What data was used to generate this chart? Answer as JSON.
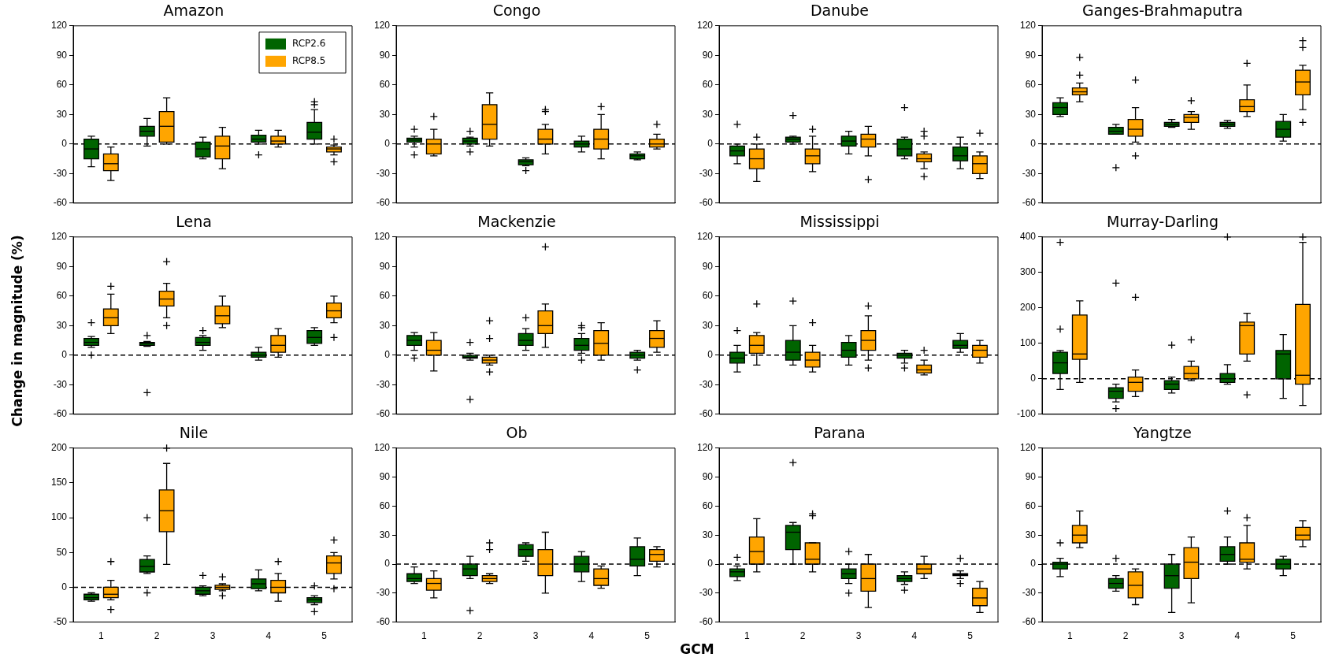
{
  "chart_data": [
    {
      "type": "box",
      "title": "Amazon",
      "categories": [
        "1",
        "2",
        "3",
        "4",
        "5"
      ],
      "ylim": [
        -60,
        120
      ],
      "yticks": [
        -60,
        -30,
        0,
        30,
        60,
        90,
        120
      ],
      "tick_labels": "y",
      "legend": "top right",
      "marker": "cross",
      "ref_lines": [
        {
          "axis": "y",
          "value": 0,
          "line_style": "dashed"
        }
      ],
      "series": [
        {
          "name": "RCP2.6",
          "color": "#006400",
          "boxes": [
            {
              "low": -23,
              "q1": -15,
              "median": -5,
              "q3": 5,
              "high": 8
            },
            {
              "low": -2,
              "q1": 8,
              "median": 13,
              "q3": 18,
              "high": 26
            },
            {
              "low": -15,
              "q1": -13,
              "median": -5,
              "q3": 2,
              "high": 7
            },
            {
              "low": 0,
              "q1": 2,
              "median": 5,
              "q3": 9,
              "high": 14,
              "outliers": [
                -11
              ]
            },
            {
              "low": 0,
              "q1": 5,
              "median": 12,
              "q3": 22,
              "high": 35,
              "outliers": [
                43,
                40
              ]
            }
          ]
        },
        {
          "name": "RCP8.5",
          "color": "#ffa500",
          "boxes": [
            {
              "low": -37,
              "q1": -27,
              "median": -20,
              "q3": -10,
              "high": -3
            },
            {
              "low": 0,
              "q1": 2,
              "median": 18,
              "q3": 33,
              "high": 47
            },
            {
              "low": -25,
              "q1": -15,
              "median": -2,
              "q3": 8,
              "high": 17
            },
            {
              "low": -3,
              "q1": 0,
              "median": 3,
              "q3": 8,
              "high": 14
            },
            {
              "low": -11,
              "q1": -8,
              "median": -5,
              "q3": -3,
              "high": -1,
              "outliers": [
                -18,
                5
              ]
            }
          ]
        }
      ]
    },
    {
      "type": "box",
      "title": "Congo",
      "categories": [
        "1",
        "2",
        "3",
        "4",
        "5"
      ],
      "ylim": [
        -60,
        120
      ],
      "yticks": [
        -60,
        -30,
        0,
        30,
        60,
        90,
        120
      ],
      "tick_labels": "y",
      "marker": "cross",
      "ref_lines": [
        {
          "axis": "y",
          "value": 0,
          "line_style": "dashed"
        }
      ],
      "series": [
        {
          "color": "#006400",
          "boxes": [
            {
              "low": -3,
              "q1": 2,
              "median": 4,
              "q3": 6,
              "high": 8,
              "outliers": [
                15,
                -11
              ]
            },
            {
              "low": -2,
              "q1": 0,
              "median": 3,
              "q3": 6,
              "high": 7,
              "outliers": [
                13,
                -8
              ]
            },
            {
              "low": -22,
              "q1": -21,
              "median": -18,
              "q3": -16,
              "high": -14,
              "outliers": [
                -27
              ]
            },
            {
              "low": -8,
              "q1": -3,
              "median": 0,
              "q3": 3,
              "high": 8
            },
            {
              "low": -16,
              "q1": -15,
              "median": -12,
              "q3": -10,
              "high": -8
            }
          ]
        },
        {
          "color": "#ffa500",
          "boxes": [
            {
              "low": -12,
              "q1": -10,
              "median": 0,
              "q3": 5,
              "high": 15,
              "outliers": [
                28
              ]
            },
            {
              "low": -2,
              "q1": 5,
              "median": 20,
              "q3": 40,
              "high": 52
            },
            {
              "low": -10,
              "q1": 0,
              "median": 5,
              "q3": 15,
              "high": 20,
              "outliers": [
                35,
                33
              ]
            },
            {
              "low": -15,
              "q1": -5,
              "median": 5,
              "q3": 15,
              "high": 30,
              "outliers": [
                38
              ]
            },
            {
              "low": -5,
              "q1": -3,
              "median": 0,
              "q3": 5,
              "high": 10,
              "outliers": [
                20
              ]
            }
          ]
        }
      ]
    },
    {
      "type": "box",
      "title": "Danube",
      "categories": [
        "1",
        "2",
        "3",
        "4",
        "5"
      ],
      "ylim": [
        -60,
        120
      ],
      "yticks": [
        -60,
        -30,
        0,
        30,
        60,
        90,
        120
      ],
      "tick_labels": "y",
      "marker": "cross",
      "ref_lines": [
        {
          "axis": "y",
          "value": 0,
          "line_style": "dashed"
        }
      ],
      "series": [
        {
          "color": "#006400",
          "boxes": [
            {
              "low": -20,
              "q1": -12,
              "median": -7,
              "q3": -2,
              "high": 0,
              "outliers": [
                20
              ]
            },
            {
              "low": 0,
              "q1": 2,
              "median": 5,
              "q3": 7,
              "high": 8,
              "outliers": [
                29
              ]
            },
            {
              "low": -10,
              "q1": -2,
              "median": 3,
              "q3": 8,
              "high": 13
            },
            {
              "low": -15,
              "q1": -12,
              "median": -5,
              "q3": 5,
              "high": 7,
              "outliers": [
                37
              ]
            },
            {
              "low": -25,
              "q1": -17,
              "median": -12,
              "q3": -3,
              "high": 7
            }
          ]
        },
        {
          "color": "#ffa500",
          "boxes": [
            {
              "low": -38,
              "q1": -25,
              "median": -15,
              "q3": -5,
              "high": 0,
              "outliers": [
                7
              ]
            },
            {
              "low": -28,
              "q1": -20,
              "median": -12,
              "q3": -5,
              "high": 8,
              "outliers": [
                15
              ]
            },
            {
              "low": -12,
              "q1": -3,
              "median": 5,
              "q3": 10,
              "high": 18,
              "outliers": [
                -36
              ]
            },
            {
              "low": -25,
              "q1": -18,
              "median": -15,
              "q3": -10,
              "high": -8,
              "outliers": [
                13,
                8,
                -33
              ]
            },
            {
              "low": -35,
              "q1": -30,
              "median": -20,
              "q3": -12,
              "high": -8,
              "outliers": [
                11
              ]
            }
          ]
        }
      ]
    },
    {
      "type": "box",
      "title": "Ganges-Brahmaputra",
      "categories": [
        "1",
        "2",
        "3",
        "4",
        "5"
      ],
      "ylim": [
        -60,
        120
      ],
      "yticks": [
        -60,
        -30,
        0,
        30,
        60,
        90,
        120
      ],
      "tick_labels": "y",
      "marker": "cross",
      "ref_lines": [
        {
          "axis": "y",
          "value": 0,
          "line_style": "dashed"
        }
      ],
      "series": [
        {
          "color": "#006400",
          "boxes": [
            {
              "low": 28,
              "q1": 30,
              "median": 37,
              "q3": 42,
              "high": 47
            },
            {
              "low": 10,
              "q1": 10,
              "median": 13,
              "q3": 17,
              "high": 20,
              "outliers": [
                -24
              ]
            },
            {
              "low": 17,
              "q1": 18,
              "median": 20,
              "q3": 22,
              "high": 25
            },
            {
              "low": 16,
              "q1": 18,
              "median": 20,
              "q3": 22,
              "high": 24
            },
            {
              "low": 3,
              "q1": 7,
              "median": 15,
              "q3": 23,
              "high": 30
            }
          ]
        },
        {
          "color": "#ffa500",
          "boxes": [
            {
              "low": 43,
              "q1": 50,
              "median": 53,
              "q3": 57,
              "high": 62,
              "outliers": [
                88,
                70
              ]
            },
            {
              "low": 2,
              "q1": 8,
              "median": 15,
              "q3": 25,
              "high": 37,
              "outliers": [
                65,
                -12
              ]
            },
            {
              "low": 15,
              "q1": 22,
              "median": 27,
              "q3": 30,
              "high": 33,
              "outliers": [
                44
              ]
            },
            {
              "low": 28,
              "q1": 33,
              "median": 38,
              "q3": 45,
              "high": 60,
              "outliers": [
                82
              ]
            },
            {
              "low": 35,
              "q1": 50,
              "median": 63,
              "q3": 75,
              "high": 80,
              "outliers": [
                105,
                98,
                22
              ]
            }
          ]
        }
      ]
    },
    {
      "type": "box",
      "title": "Lena",
      "ylabel": "Change in magnitude (%)",
      "categories": [
        "1",
        "2",
        "3",
        "4",
        "5"
      ],
      "ylim": [
        -60,
        120
      ],
      "yticks": [
        -60,
        -30,
        0,
        30,
        60,
        90,
        120
      ],
      "tick_labels": "y",
      "marker": "cross",
      "ref_lines": [
        {
          "axis": "y",
          "value": 0,
          "line_style": "dashed"
        }
      ],
      "series": [
        {
          "color": "#006400",
          "boxes": [
            {
              "low": 8,
              "q1": 10,
              "median": 13,
              "q3": 17,
              "high": 19,
              "outliers": [
                33,
                0
              ]
            },
            {
              "low": 9,
              "q1": 10,
              "median": 12,
              "q3": 13,
              "high": 14,
              "outliers": [
                20,
                -38
              ]
            },
            {
              "low": 5,
              "q1": 10,
              "median": 13,
              "q3": 18,
              "high": 20,
              "outliers": [
                25
              ]
            },
            {
              "low": -5,
              "q1": -2,
              "median": 0,
              "q3": 3,
              "high": 8
            },
            {
              "low": 10,
              "q1": 12,
              "median": 18,
              "q3": 25,
              "high": 28
            }
          ]
        },
        {
          "color": "#ffa500",
          "boxes": [
            {
              "low": 22,
              "q1": 30,
              "median": 38,
              "q3": 47,
              "high": 62,
              "outliers": [
                70
              ]
            },
            {
              "low": 38,
              "q1": 50,
              "median": 57,
              "q3": 65,
              "high": 73,
              "outliers": [
                95,
                30
              ]
            },
            {
              "low": 28,
              "q1": 32,
              "median": 40,
              "q3": 50,
              "high": 60
            },
            {
              "low": -2,
              "q1": 3,
              "median": 10,
              "q3": 20,
              "high": 27
            },
            {
              "low": 33,
              "q1": 38,
              "median": 45,
              "q3": 53,
              "high": 60,
              "outliers": [
                18
              ]
            }
          ]
        }
      ]
    },
    {
      "type": "box",
      "title": "Mackenzie",
      "categories": [
        "1",
        "2",
        "3",
        "4",
        "5"
      ],
      "ylim": [
        -60,
        120
      ],
      "yticks": [
        -60,
        -30,
        0,
        30,
        60,
        90,
        120
      ],
      "tick_labels": "y",
      "marker": "cross",
      "ref_lines": [
        {
          "axis": "y",
          "value": 0,
          "line_style": "dashed"
        }
      ],
      "series": [
        {
          "color": "#006400",
          "boxes": [
            {
              "low": 5,
              "q1": 10,
              "median": 15,
              "q3": 20,
              "high": 23,
              "outliers": [
                -3
              ]
            },
            {
              "low": -5,
              "q1": -3,
              "median": -2,
              "q3": 0,
              "high": 2,
              "outliers": [
                13,
                -45
              ]
            },
            {
              "low": 5,
              "q1": 10,
              "median": 15,
              "q3": 22,
              "high": 27,
              "outliers": [
                38
              ]
            },
            {
              "low": 2,
              "q1": 5,
              "median": 10,
              "q3": 17,
              "high": 22,
              "outliers": [
                30,
                28,
                -5
              ]
            },
            {
              "low": -5,
              "q1": -3,
              "median": 0,
              "q3": 3,
              "high": 5,
              "outliers": [
                -15
              ]
            }
          ]
        },
        {
          "color": "#ffa500",
          "boxes": [
            {
              "low": -16,
              "q1": 0,
              "median": 5,
              "q3": 15,
              "high": 23
            },
            {
              "low": -10,
              "q1": -8,
              "median": -5,
              "q3": -2,
              "high": 0,
              "outliers": [
                35,
                17,
                -17
              ]
            },
            {
              "low": 8,
              "q1": 22,
              "median": 30,
              "q3": 45,
              "high": 52,
              "outliers": [
                110
              ]
            },
            {
              "low": -5,
              "q1": 0,
              "median": 12,
              "q3": 25,
              "high": 33
            },
            {
              "low": 3,
              "q1": 8,
              "median": 17,
              "q3": 25,
              "high": 35
            }
          ]
        }
      ]
    },
    {
      "type": "box",
      "title": "Mississippi",
      "categories": [
        "1",
        "2",
        "3",
        "4",
        "5"
      ],
      "ylim": [
        -60,
        120
      ],
      "yticks": [
        -60,
        -30,
        0,
        30,
        60,
        90,
        120
      ],
      "tick_labels": "y",
      "marker": "cross",
      "ref_lines": [
        {
          "axis": "y",
          "value": 0,
          "line_style": "dashed"
        }
      ],
      "series": [
        {
          "color": "#006400",
          "boxes": [
            {
              "low": -17,
              "q1": -8,
              "median": -3,
              "q3": 3,
              "high": 10,
              "outliers": [
                25
              ]
            },
            {
              "low": -10,
              "q1": -5,
              "median": 3,
              "q3": 15,
              "high": 30,
              "outliers": [
                55
              ]
            },
            {
              "low": -10,
              "q1": -2,
              "median": 5,
              "q3": 13,
              "high": 20
            },
            {
              "low": -8,
              "q1": -3,
              "median": 0,
              "q3": 2,
              "high": 5,
              "outliers": [
                -13
              ]
            },
            {
              "low": 3,
              "q1": 7,
              "median": 10,
              "q3": 15,
              "high": 22
            }
          ]
        },
        {
          "color": "#ffa500",
          "boxes": [
            {
              "low": -10,
              "q1": 2,
              "median": 10,
              "q3": 20,
              "high": 23,
              "outliers": [
                52
              ]
            },
            {
              "low": -17,
              "q1": -12,
              "median": -5,
              "q3": 3,
              "high": 10,
              "outliers": [
                33
              ]
            },
            {
              "low": -5,
              "q1": 5,
              "median": 15,
              "q3": 25,
              "high": 40,
              "outliers": [
                50,
                -13
              ]
            },
            {
              "low": -20,
              "q1": -18,
              "median": -15,
              "q3": -10,
              "high": -5,
              "outliers": [
                5
              ]
            },
            {
              "low": -8,
              "q1": -2,
              "median": 5,
              "q3": 10,
              "high": 15
            }
          ]
        }
      ]
    },
    {
      "type": "box",
      "title": "Murray-Darling",
      "categories": [
        "1",
        "2",
        "3",
        "4",
        "5"
      ],
      "ylim": [
        -100,
        400
      ],
      "yticks": [
        -100,
        0,
        100,
        200,
        300,
        400
      ],
      "tick_labels": "y",
      "marker": "cross",
      "ref_lines": [
        {
          "axis": "y",
          "value": 0,
          "line_style": "dashed"
        }
      ],
      "series": [
        {
          "color": "#006400",
          "boxes": [
            {
              "low": -30,
              "q1": 15,
              "median": 45,
              "q3": 75,
              "high": 80,
              "outliers": [
                385,
                140
              ]
            },
            {
              "low": -65,
              "q1": -55,
              "median": -35,
              "q3": -25,
              "high": -15,
              "outliers": [
                270,
                -84
              ]
            },
            {
              "low": -40,
              "q1": -30,
              "median": -15,
              "q3": -5,
              "high": 5,
              "outliers": [
                95
              ]
            },
            {
              "low": -15,
              "q1": -10,
              "median": 0,
              "q3": 15,
              "high": 40,
              "outliers": [
                400
              ]
            },
            {
              "low": -55,
              "q1": 0,
              "median": 70,
              "q3": 80,
              "high": 125
            }
          ]
        },
        {
          "color": "#ffa500",
          "boxes": [
            {
              "low": -10,
              "q1": 55,
              "median": 70,
              "q3": 180,
              "high": 220
            },
            {
              "low": -50,
              "q1": -35,
              "median": -10,
              "q3": 5,
              "high": 25,
              "outliers": [
                230
              ]
            },
            {
              "low": -5,
              "q1": 0,
              "median": 15,
              "q3": 35,
              "high": 50,
              "outliers": [
                110
              ]
            },
            {
              "low": 50,
              "q1": 70,
              "median": 150,
              "q3": 160,
              "high": 185,
              "outliers": [
                -45
              ]
            },
            {
              "low": -75,
              "q1": -15,
              "median": 10,
              "q3": 210,
              "high": 385,
              "outliers": [
                400
              ]
            }
          ]
        }
      ]
    },
    {
      "type": "box",
      "title": "Nile",
      "categories": [
        "1",
        "2",
        "3",
        "4",
        "5"
      ],
      "ylim": [
        -50,
        200
      ],
      "yticks": [
        -50,
        0,
        50,
        100,
        150,
        200
      ],
      "marker": "cross",
      "ref_lines": [
        {
          "axis": "y",
          "value": 0,
          "line_style": "dashed"
        }
      ],
      "series": [
        {
          "color": "#006400",
          "boxes": [
            {
              "low": -20,
              "q1": -18,
              "median": -15,
              "q3": -10,
              "high": -8
            },
            {
              "low": 20,
              "q1": 22,
              "median": 30,
              "q3": 40,
              "high": 45,
              "outliers": [
                100,
                -8
              ]
            },
            {
              "low": -12,
              "q1": -10,
              "median": -5,
              "q3": 0,
              "high": 2,
              "outliers": [
                17
              ]
            },
            {
              "low": -5,
              "q1": -2,
              "median": 5,
              "q3": 12,
              "high": 25
            },
            {
              "low": -25,
              "q1": -22,
              "median": -18,
              "q3": -15,
              "high": -12,
              "outliers": [
                -35,
                2
              ]
            }
          ]
        },
        {
          "color": "#ffa500",
          "boxes": [
            {
              "low": -18,
              "q1": -15,
              "median": -10,
              "q3": 0,
              "high": 10,
              "outliers": [
                37,
                -32
              ]
            },
            {
              "low": 33,
              "q1": 80,
              "median": 110,
              "q3": 140,
              "high": 178,
              "outliers": [
                200
              ]
            },
            {
              "low": -5,
              "q1": -3,
              "median": 0,
              "q3": 3,
              "high": 5,
              "outliers": [
                15,
                -12
              ]
            },
            {
              "low": -20,
              "q1": -8,
              "median": 0,
              "q3": 10,
              "high": 20,
              "outliers": [
                37
              ]
            },
            {
              "low": 12,
              "q1": 20,
              "median": 35,
              "q3": 45,
              "high": 50,
              "outliers": [
                68,
                -2
              ]
            }
          ]
        }
      ]
    },
    {
      "type": "box",
      "title": "Ob",
      "xlabel": "GCM",
      "categories": [
        "1",
        "2",
        "3",
        "4",
        "5"
      ],
      "ylim": [
        -60,
        120
      ],
      "yticks": [
        -60,
        -30,
        0,
        30,
        60,
        90,
        120
      ],
      "marker": "cross",
      "ref_lines": [
        {
          "axis": "y",
          "value": 0,
          "line_style": "dashed"
        }
      ],
      "series": [
        {
          "color": "#006400",
          "boxes": [
            {
              "low": -20,
              "q1": -18,
              "median": -15,
              "q3": -10,
              "high": -3
            },
            {
              "low": -15,
              "q1": -12,
              "median": -5,
              "q3": 0,
              "high": 8,
              "outliers": [
                -48
              ]
            },
            {
              "low": 3,
              "q1": 8,
              "median": 15,
              "q3": 20,
              "high": 22
            },
            {
              "low": -18,
              "q1": -8,
              "median": 0,
              "q3": 8,
              "high": 13
            },
            {
              "low": -12,
              "q1": -2,
              "median": 5,
              "q3": 18,
              "high": 27
            }
          ]
        },
        {
          "color": "#ffa500",
          "boxes": [
            {
              "low": -35,
              "q1": -27,
              "median": -20,
              "q3": -15,
              "high": -7
            },
            {
              "low": -20,
              "q1": -18,
              "median": -15,
              "q3": -12,
              "high": -10,
              "outliers": [
                22,
                15
              ]
            },
            {
              "low": -30,
              "q1": -12,
              "median": 0,
              "q3": 15,
              "high": 33
            },
            {
              "low": -25,
              "q1": -22,
              "median": -15,
              "q3": -5,
              "high": -2
            },
            {
              "low": -3,
              "q1": 3,
              "median": 10,
              "q3": 15,
              "high": 18
            }
          ]
        }
      ]
    },
    {
      "type": "box",
      "title": "Parana",
      "categories": [
        "1",
        "2",
        "3",
        "4",
        "5"
      ],
      "ylim": [
        -60,
        120
      ],
      "yticks": [
        -60,
        -30,
        0,
        30,
        60,
        90,
        120
      ],
      "marker": "cross",
      "ref_lines": [
        {
          "axis": "y",
          "value": 0,
          "line_style": "dashed"
        }
      ],
      "series": [
        {
          "color": "#006400",
          "boxes": [
            {
              "low": -17,
              "q1": -13,
              "median": -8,
              "q3": -5,
              "high": -2,
              "outliers": [
                7
              ]
            },
            {
              "low": 0,
              "q1": 15,
              "median": 33,
              "q3": 40,
              "high": 43,
              "outliers": [
                105
              ]
            },
            {
              "low": -20,
              "q1": -15,
              "median": -10,
              "q3": -5,
              "high": 0,
              "outliers": [
                13,
                -30
              ]
            },
            {
              "low": -21,
              "q1": -18,
              "median": -15,
              "q3": -12,
              "high": -8,
              "outliers": [
                -27
              ]
            },
            {
              "low": -15,
              "q1": -12,
              "median": -11,
              "q3": -10,
              "high": -7,
              "outliers": [
                6,
                -20
              ]
            }
          ]
        },
        {
          "color": "#ffa500",
          "boxes": [
            {
              "low": -8,
              "q1": 0,
              "median": 13,
              "q3": 28,
              "high": 47
            },
            {
              "low": -8,
              "q1": 0,
              "median": 5,
              "q3": 22,
              "high": 22,
              "outliers": [
                52,
                50
              ]
            },
            {
              "low": -45,
              "q1": -28,
              "median": -15,
              "q3": 0,
              "high": 10
            },
            {
              "low": -15,
              "q1": -10,
              "median": -5,
              "q3": 0,
              "high": 8
            },
            {
              "low": -50,
              "q1": -43,
              "median": -35,
              "q3": -25,
              "high": -18
            }
          ]
        }
      ]
    },
    {
      "type": "box",
      "title": "Yangtze",
      "categories": [
        "1",
        "2",
        "3",
        "4",
        "5"
      ],
      "ylim": [
        -60,
        120
      ],
      "yticks": [
        -60,
        -30,
        0,
        30,
        60,
        90,
        120
      ],
      "marker": "cross",
      "ref_lines": [
        {
          "axis": "y",
          "value": 0,
          "line_style": "dashed"
        }
      ],
      "series": [
        {
          "color": "#006400",
          "boxes": [
            {
              "low": -13,
              "q1": -5,
              "median": 0,
              "q3": 2,
              "high": 6,
              "outliers": [
                22
              ]
            },
            {
              "low": -28,
              "q1": -25,
              "median": -20,
              "q3": -15,
              "high": -12,
              "outliers": [
                6
              ]
            },
            {
              "low": -50,
              "q1": -25,
              "median": -12,
              "q3": 0,
              "high": 10
            },
            {
              "low": 0,
              "q1": 3,
              "median": 10,
              "q3": 18,
              "high": 28,
              "outliers": [
                55
              ]
            },
            {
              "low": -12,
              "q1": -5,
              "median": 0,
              "q3": 5,
              "high": 8
            }
          ]
        },
        {
          "color": "#ffa500",
          "boxes": [
            {
              "low": 17,
              "q1": 22,
              "median": 30,
              "q3": 40,
              "high": 55
            },
            {
              "low": -42,
              "q1": -35,
              "median": -22,
              "q3": -8,
              "high": -5
            },
            {
              "low": -40,
              "q1": -15,
              "median": 2,
              "q3": 17,
              "high": 28
            },
            {
              "low": -5,
              "q1": 2,
              "median": 5,
              "q3": 22,
              "high": 40,
              "outliers": [
                48
              ]
            },
            {
              "low": 18,
              "q1": 25,
              "median": 30,
              "q3": 38,
              "high": 45
            }
          ]
        }
      ]
    }
  ]
}
